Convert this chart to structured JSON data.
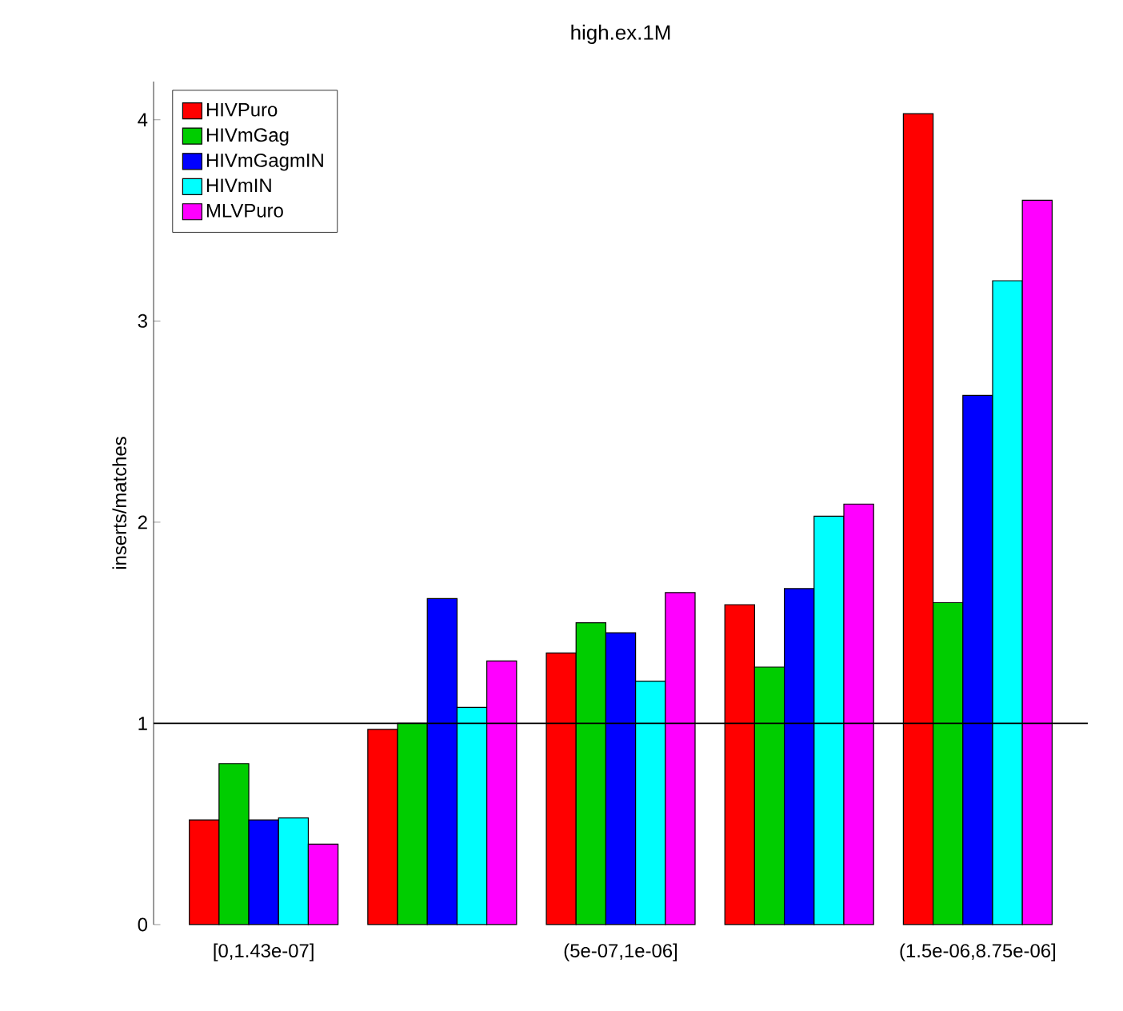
{
  "chart_data": {
    "type": "bar",
    "title": "high.ex.1M",
    "ylabel": "inserts/matches",
    "categories": [
      "[0,1.43e-07]",
      null,
      "(5e-07,1e-06]",
      null,
      "(1.5e-06,8.75e-06]"
    ],
    "series": [
      {
        "name": "HIVPuro",
        "color": "#ff0000",
        "values": [
          0.52,
          0.97,
          1.35,
          1.59,
          4.03
        ]
      },
      {
        "name": "HIVmGag",
        "color": "#00cd00",
        "values": [
          0.8,
          1.0,
          1.5,
          1.28,
          1.6
        ]
      },
      {
        "name": "HIVmGagmIN",
        "color": "#0000ff",
        "values": [
          0.52,
          1.62,
          1.45,
          1.67,
          2.63
        ]
      },
      {
        "name": "HIVmIN",
        "color": "#00ffff",
        "values": [
          0.53,
          1.08,
          1.21,
          2.03,
          3.2
        ]
      },
      {
        "name": "MLVPuro",
        "color": "#ff00ff",
        "values": [
          0.4,
          1.31,
          1.65,
          2.09,
          3.6
        ]
      }
    ],
    "ylim": [
      0,
      4.19
    ],
    "yticks": [
      0,
      1,
      2,
      3,
      4
    ],
    "ref_lines": [
      {
        "axis": "y",
        "value": 1
      }
    ],
    "legend": "top left"
  }
}
